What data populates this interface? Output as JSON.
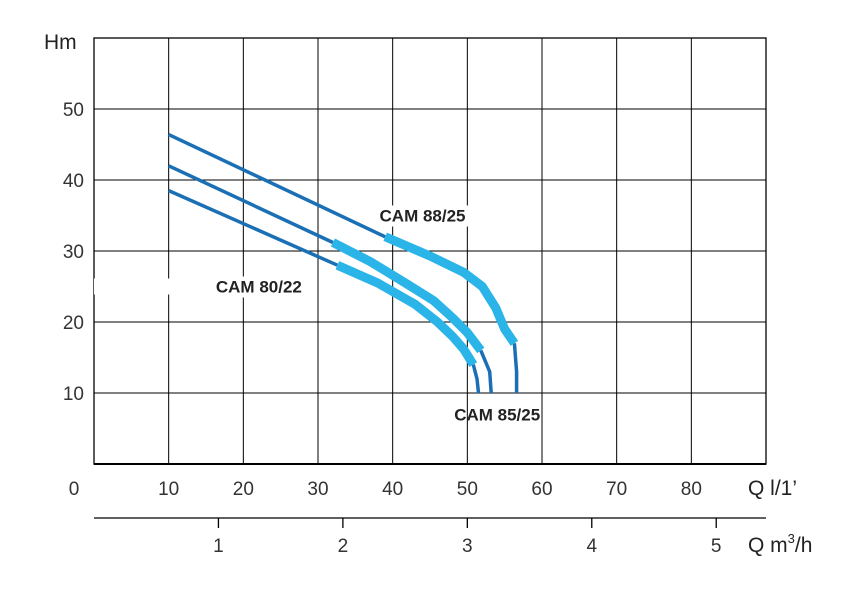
{
  "chart_data": {
    "type": "line",
    "ylabel": "Hm",
    "xlabel": "Q l/1’",
    "x2label_main": "Q m",
    "x2label_sup": "3",
    "x2label_tail": "/h",
    "xlim": [
      0,
      90
    ],
    "ylim": [
      0,
      60
    ],
    "x_origin_label": "0",
    "x_ticks": [
      10,
      20,
      30,
      40,
      50,
      60,
      70,
      80
    ],
    "y_ticks": [
      10,
      20,
      30,
      40,
      50
    ],
    "x2_ticks": [
      1,
      2,
      3,
      4,
      5
    ],
    "grid": true,
    "colors": {
      "dark": "#1a6fb5",
      "light": "#2ab4e8",
      "grid": "#000000"
    },
    "series": [
      {
        "name": "CAM 88/25",
        "dark": [
          [
            10,
            46.4
          ],
          [
            39,
            32
          ]
        ],
        "light": [
          [
            39,
            32
          ],
          [
            45,
            29.3
          ],
          [
            49.5,
            27
          ],
          [
            52,
            25
          ],
          [
            53.8,
            22
          ],
          [
            55,
            19
          ],
          [
            56.3,
            17
          ]
        ],
        "tail": [
          [
            56.3,
            17
          ],
          [
            56.6,
            13
          ],
          [
            56.6,
            10
          ]
        ]
      },
      {
        "name": "CAM 85/25",
        "dark": [
          [
            10,
            42
          ],
          [
            32,
            31.2
          ]
        ],
        "light": [
          [
            32,
            31.2
          ],
          [
            37,
            28.5
          ],
          [
            42,
            25.3
          ],
          [
            45.5,
            23
          ],
          [
            48,
            20.6
          ],
          [
            50,
            18.5
          ],
          [
            51.8,
            16
          ]
        ],
        "tail": [
          [
            51.8,
            16
          ],
          [
            53,
            13
          ],
          [
            53.2,
            10
          ]
        ]
      },
      {
        "name": "CAM 80/22",
        "dark": [
          [
            10,
            38.5
          ],
          [
            32.6,
            28
          ]
        ],
        "light": [
          [
            32.6,
            28
          ],
          [
            38,
            25.5
          ],
          [
            43,
            22.5
          ],
          [
            46,
            20
          ],
          [
            48,
            18
          ],
          [
            49.5,
            16.2
          ],
          [
            50.8,
            14
          ]
        ],
        "tail": [
          [
            50.8,
            14
          ],
          [
            51.3,
            12
          ],
          [
            51.5,
            10
          ]
        ]
      }
    ],
    "annotations": [
      {
        "text": "CAM 88/25",
        "x": 44,
        "y": 35,
        "anchor": "middle",
        "line_from": 39.5,
        "line_to": 57
      },
      {
        "text": "CAM 80/22",
        "x": 26.5,
        "y": 25,
        "anchor": "end",
        "line_from": 0,
        "line_to": 28.2
      },
      {
        "text": "CAM 85/25",
        "x": 54,
        "y": 7,
        "anchor": "middle"
      }
    ]
  }
}
